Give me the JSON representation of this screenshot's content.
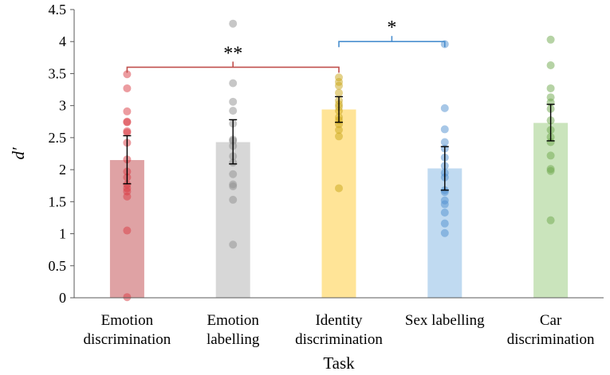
{
  "chart_data": {
    "type": "bar",
    "title": "",
    "xlabel": "Task",
    "ylabel": "d′",
    "ylim": [
      0,
      4.5
    ],
    "y_ticks": [
      "0",
      "0.5",
      "1",
      "1.5",
      "2",
      "2.5",
      "3",
      "3.5",
      "4",
      "4.5"
    ],
    "gridlines": false,
    "categories": [
      {
        "lines": [
          "Emotion",
          "discrimination"
        ],
        "mean": 2.15,
        "ci": [
          1.78,
          2.53
        ],
        "bar_color": "#d99294",
        "dot_color": "#d93a42",
        "points": [
          3.49,
          3.27,
          2.91,
          2.75,
          2.74,
          2.6,
          2.58,
          2.42,
          2.16,
          1.97,
          1.88,
          1.77,
          1.71,
          1.66,
          1.58,
          1.05,
          0.01
        ]
      },
      {
        "lines": [
          "Emotion",
          "labelling"
        ],
        "mean": 2.43,
        "ci": [
          2.09,
          2.78
        ],
        "bar_color": "#d0d0d0",
        "dot_color": "#8f8f8f",
        "points": [
          4.28,
          3.35,
          3.06,
          2.92,
          2.72,
          2.47,
          2.45,
          2.37,
          2.21,
          2.11,
          1.93,
          1.77,
          1.74,
          1.53,
          0.83
        ]
      },
      {
        "lines": [
          "Identity",
          "discrimination"
        ],
        "mean": 2.94,
        "ci": [
          2.74,
          3.14
        ],
        "bar_color": "#ffdf85",
        "dot_color": "#c9a517",
        "points": [
          3.44,
          3.37,
          3.31,
          3.2,
          3.08,
          3.02,
          2.98,
          2.92,
          2.82,
          2.77,
          2.71,
          2.62,
          2.52,
          1.71
        ]
      },
      {
        "lines": [
          "Sex labelling"
        ],
        "mean": 2.02,
        "ci": [
          1.68,
          2.36
        ],
        "bar_color": "#b5d3ee",
        "dot_color": "#4f8fcf",
        "points": [
          3.96,
          2.96,
          2.63,
          2.43,
          2.33,
          2.19,
          2.06,
          1.95,
          1.88,
          1.68,
          1.65,
          1.52,
          1.46,
          1.33,
          1.16,
          1.01
        ]
      },
      {
        "lines": [
          "Car",
          "discrimination"
        ],
        "mean": 2.73,
        "ci": [
          2.45,
          3.02
        ],
        "bar_color": "#c1dfb0",
        "dot_color": "#6ea84c",
        "points": [
          4.03,
          3.63,
          3.27,
          3.13,
          3.05,
          2.95,
          2.77,
          2.62,
          2.51,
          2.43,
          2.22,
          2.01,
          1.98,
          1.21
        ]
      }
    ],
    "significance": [
      {
        "from": 0,
        "to": 2,
        "y": 3.6,
        "label": "**",
        "color": "#c0504d"
      },
      {
        "from": 2,
        "to": 3,
        "y": 4.0,
        "label": "*",
        "color": "#4a8fcf"
      }
    ]
  }
}
